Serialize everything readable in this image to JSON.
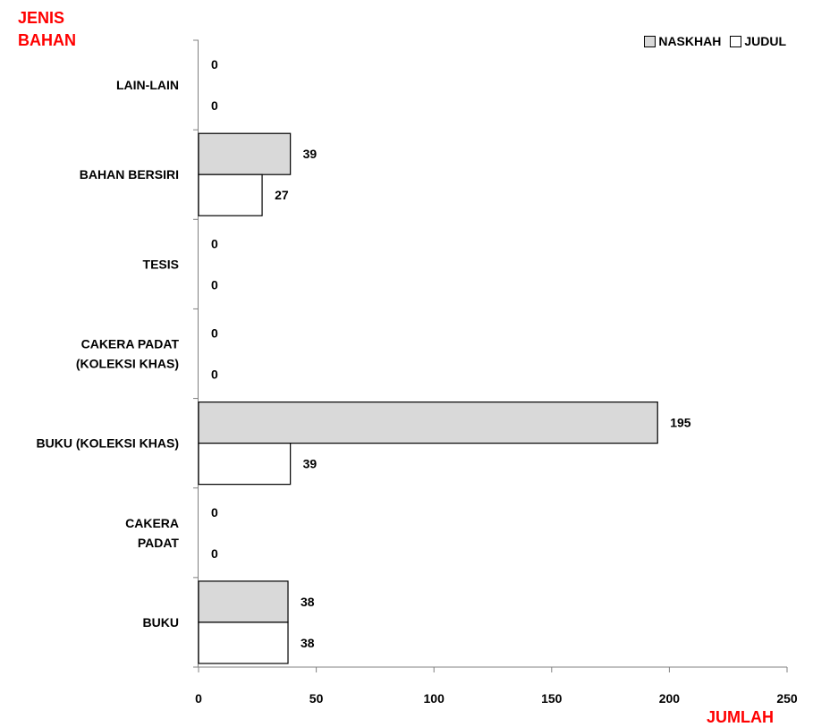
{
  "chart_data": {
    "type": "bar",
    "orientation": "horizontal",
    "ylabel_lines": [
      "JENIS",
      "BAHAN"
    ],
    "xlabel": "JUMLAH",
    "categories": [
      [
        "LAIN-LAIN"
      ],
      [
        "BAHAN BERSIRI"
      ],
      [
        "TESIS"
      ],
      [
        "CAKERA PADAT",
        "(KOLEKSI KHAS)"
      ],
      [
        "BUKU (KOLEKSI KHAS)"
      ],
      [
        "CAKERA",
        "PADAT"
      ],
      [
        "BUKU"
      ]
    ],
    "series": [
      {
        "name": "NASKHAH",
        "color": "#d9d9d9",
        "values": [
          0,
          39,
          0,
          0,
          195,
          0,
          38
        ]
      },
      {
        "name": "JUDUL",
        "color": "#ffffff",
        "values": [
          0,
          27,
          0,
          0,
          39,
          0,
          38
        ]
      }
    ],
    "xlim": [
      0,
      250
    ],
    "xticks": [
      0,
      50,
      100,
      150,
      200,
      250
    ],
    "grid": false,
    "legend_position": "top-right",
    "axis_title_color": "#ff0000"
  }
}
